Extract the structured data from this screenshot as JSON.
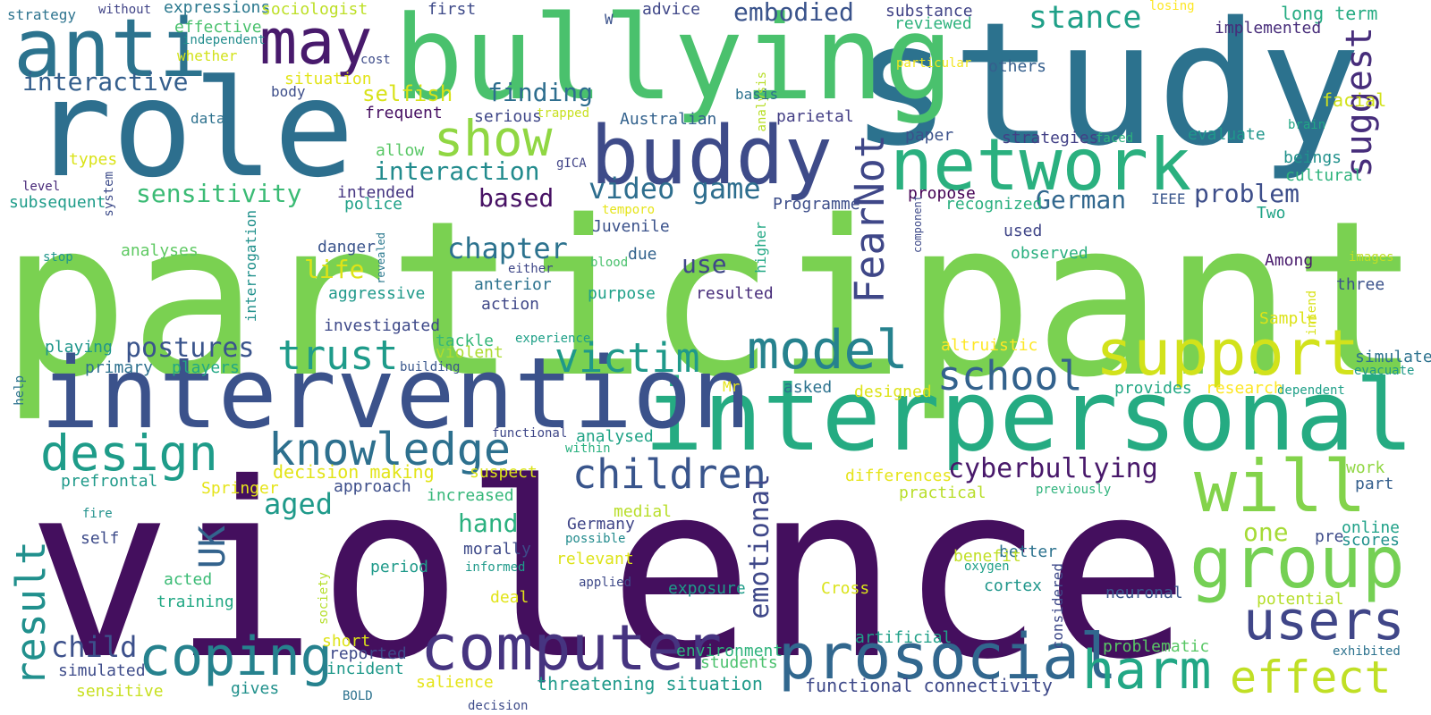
{
  "words": [
    {
      "text": "participant",
      "size": 240,
      "color": "#7ad151"
    },
    {
      "text": "violence",
      "size": 270,
      "color": "#440f5e"
    },
    {
      "text": "study",
      "size": 190,
      "color": "#2c728e"
    },
    {
      "text": "role",
      "size": 150,
      "color": "#2d6f8e"
    },
    {
      "text": "bullying",
      "size": 130,
      "color": "#4ac16d"
    },
    {
      "text": "interpersonal",
      "size": 110,
      "color": "#25ab82"
    },
    {
      "text": "intervention",
      "size": 110,
      "color": "#3b528b"
    },
    {
      "text": "buddy",
      "size": 90,
      "color": "#3e4b89"
    },
    {
      "text": "anti",
      "size": 90,
      "color": "#2c738e"
    },
    {
      "text": "network",
      "size": 80,
      "color": "#2ab07f"
    },
    {
      "text": "may",
      "size": 70,
      "color": "#481a6c"
    },
    {
      "text": "group",
      "size": 80,
      "color": "#75d054"
    },
    {
      "text": "will",
      "size": 80,
      "color": "#83d34b"
    },
    {
      "text": "computer",
      "size": 70,
      "color": "#463480"
    },
    {
      "text": "prosocial",
      "size": 70,
      "color": "#31678e"
    },
    {
      "text": "support",
      "size": 70,
      "color": "#d2e21b"
    },
    {
      "text": "model",
      "size": 60,
      "color": "#26828e"
    },
    {
      "text": "users",
      "size": 60,
      "color": "#404688"
    },
    {
      "text": "harm",
      "size": 60,
      "color": "#22a785"
    },
    {
      "text": "effect",
      "size": 50,
      "color": "#c0df25"
    },
    {
      "text": "coping",
      "size": 60,
      "color": "#26828e"
    },
    {
      "text": "design",
      "size": 55,
      "color": "#1e9c89"
    },
    {
      "text": "knowledge",
      "size": 50,
      "color": "#2d708e"
    },
    {
      "text": "show",
      "size": 55,
      "color": "#90d743"
    },
    {
      "text": "victim",
      "size": 45,
      "color": "#1f998a"
    },
    {
      "text": "children",
      "size": 45,
      "color": "#39558c"
    },
    {
      "text": "school",
      "size": 45,
      "color": "#33628d"
    },
    {
      "text": "trust",
      "size": 45,
      "color": "#1e9b8a"
    },
    {
      "text": "result",
      "size": 45,
      "color": "#21908d"
    },
    {
      "text": "FearNot",
      "size": 45,
      "color": "#3f4788"
    },
    {
      "text": "suggest",
      "size": 40,
      "color": "#472d7b"
    },
    {
      "text": "stance",
      "size": 35,
      "color": "#1fa088"
    },
    {
      "text": "emotional",
      "size": 30,
      "color": "#3f4889"
    },
    {
      "text": "UK",
      "size": 40,
      "color": "#33638d"
    },
    {
      "text": "video game",
      "size": 32,
      "color": "#2e6e8e"
    },
    {
      "text": "child",
      "size": 32,
      "color": "#3c508b"
    },
    {
      "text": "aged",
      "size": 32,
      "color": "#1f9a8a"
    },
    {
      "text": "chapter",
      "size": 32,
      "color": "#2c728e"
    },
    {
      "text": "cyberbullying",
      "size": 30,
      "color": "#48186a"
    },
    {
      "text": "postures",
      "size": 30,
      "color": "#3a548c"
    },
    {
      "text": "embodied",
      "size": 28,
      "color": "#3a538b"
    },
    {
      "text": "finding",
      "size": 28,
      "color": "#2e6e8e"
    },
    {
      "text": "interaction",
      "size": 28,
      "color": "#228b8d"
    },
    {
      "text": "sensitivity",
      "size": 28,
      "color": "#3bbb75"
    },
    {
      "text": "interactive",
      "size": 28,
      "color": "#355f8d"
    },
    {
      "text": "based",
      "size": 28,
      "color": "#471164"
    },
    {
      "text": "problem",
      "size": 28,
      "color": "#3d4e8a"
    },
    {
      "text": "German",
      "size": 28,
      "color": "#31678e"
    },
    {
      "text": "life",
      "size": 28,
      "color": "#dde318"
    },
    {
      "text": "hand",
      "size": 28,
      "color": "#2ab07f"
    },
    {
      "text": "use",
      "size": 28,
      "color": "#3f4788"
    },
    {
      "text": "one",
      "size": 28,
      "color": "#a5db36"
    },
    {
      "text": "selfish",
      "size": 24,
      "color": "#d8e219"
    },
    {
      "text": "expressions",
      "size": 18,
      "color": "#2a788e"
    },
    {
      "text": "sociologist",
      "size": 18,
      "color": "#bddf26"
    },
    {
      "text": "strategy",
      "size": 16,
      "color": "#2c738e"
    },
    {
      "text": "without",
      "size": 14,
      "color": "#414487"
    },
    {
      "text": "effective",
      "size": 18,
      "color": "#4ac16d"
    },
    {
      "text": "independent",
      "size": 14,
      "color": "#228d8d"
    },
    {
      "text": "whether",
      "size": 16,
      "color": "#d2e21b"
    },
    {
      "text": "first",
      "size": 18,
      "color": "#3e4a89"
    },
    {
      "text": "W",
      "size": 16,
      "color": "#3b528b"
    },
    {
      "text": "advice",
      "size": 18,
      "color": "#3f4788"
    },
    {
      "text": "substance",
      "size": 18,
      "color": "#414487"
    },
    {
      "text": "reviewed",
      "size": 18,
      "color": "#2db27d"
    },
    {
      "text": "losing",
      "size": 14,
      "color": "#fde725"
    },
    {
      "text": "long term",
      "size": 20,
      "color": "#25ab82"
    },
    {
      "text": "implemented",
      "size": 18,
      "color": "#472c7a"
    },
    {
      "text": "particular",
      "size": 14,
      "color": "#f1e51d"
    },
    {
      "text": "others",
      "size": 18,
      "color": "#355f8d"
    },
    {
      "text": "cost",
      "size": 14,
      "color": "#3e4c8a"
    },
    {
      "text": "situation",
      "size": 18,
      "color": "#e2e418"
    },
    {
      "text": "body",
      "size": 16,
      "color": "#3d4e8a"
    },
    {
      "text": "analysis",
      "size": 14,
      "color": "#b8de29"
    },
    {
      "text": "basis",
      "size": 16,
      "color": "#2c728e"
    },
    {
      "text": "parietal",
      "size": 18,
      "color": "#433e85"
    },
    {
      "text": "facial",
      "size": 20,
      "color": "#d2e21b"
    },
    {
      "text": "brain",
      "size": 14,
      "color": "#21a685"
    },
    {
      "text": "data",
      "size": 16,
      "color": "#2d718e"
    },
    {
      "text": "frequent",
      "size": 18,
      "color": "#471063"
    },
    {
      "text": "serious",
      "size": 18,
      "color": "#3f4788"
    },
    {
      "text": "trapped",
      "size": 14,
      "color": "#c8e020"
    },
    {
      "text": "Australian",
      "size": 18,
      "color": "#33628d"
    },
    {
      "text": "paper",
      "size": 18,
      "color": "#3b518b"
    },
    {
      "text": "strategies",
      "size": 18,
      "color": "#424086"
    },
    {
      "text": "faced",
      "size": 14,
      "color": "#2db27d"
    },
    {
      "text": "evaluate",
      "size": 18,
      "color": "#1f968b"
    },
    {
      "text": "beings",
      "size": 18,
      "color": "#21918c"
    },
    {
      "text": "cultural",
      "size": 18,
      "color": "#2eb37c"
    },
    {
      "text": "types",
      "size": 18,
      "color": "#dae319"
    },
    {
      "text": "allow",
      "size": 18,
      "color": "#58c765"
    },
    {
      "text": "gICA",
      "size": 14,
      "color": "#414487"
    },
    {
      "text": "system",
      "size": 14,
      "color": "#3e4c8a"
    },
    {
      "text": "level",
      "size": 14,
      "color": "#472878"
    },
    {
      "text": "intended",
      "size": 18,
      "color": "#453581"
    },
    {
      "text": "propose",
      "size": 18,
      "color": "#440154"
    },
    {
      "text": "recognized",
      "size": 18,
      "color": "#2ab07f"
    },
    {
      "text": "IEEE",
      "size": 16,
      "color": "#39568c"
    },
    {
      "text": "Two",
      "size": 18,
      "color": "#20a386"
    },
    {
      "text": "subsequent",
      "size": 18,
      "color": "#1e9c89"
    },
    {
      "text": "police",
      "size": 18,
      "color": "#1fa188"
    },
    {
      "text": "temporo",
      "size": 14,
      "color": "#e5e419"
    },
    {
      "text": "Programme",
      "size": 18,
      "color": "#3d4e8a"
    },
    {
      "text": "component",
      "size": 12,
      "color": "#3e4a89"
    },
    {
      "text": "used",
      "size": 18,
      "color": "#404688"
    },
    {
      "text": "interrogation",
      "size": 16,
      "color": "#21918c"
    },
    {
      "text": "danger",
      "size": 18,
      "color": "#3a548c"
    },
    {
      "text": "Juvenile",
      "size": 18,
      "color": "#3b528b"
    },
    {
      "text": "higher",
      "size": 16,
      "color": "#22a884"
    },
    {
      "text": "observed",
      "size": 18,
      "color": "#29af7f"
    },
    {
      "text": "stop",
      "size": 14,
      "color": "#1f968b"
    },
    {
      "text": "analyses",
      "size": 18,
      "color": "#5ec962"
    },
    {
      "text": "revealed",
      "size": 12,
      "color": "#2a788e"
    },
    {
      "text": "either",
      "size": 14,
      "color": "#3f4788"
    },
    {
      "text": "blood",
      "size": 14,
      "color": "#4ac16d"
    },
    {
      "text": "due",
      "size": 18,
      "color": "#33638d"
    },
    {
      "text": "Among",
      "size": 18,
      "color": "#481a6c"
    },
    {
      "text": "images",
      "size": 14,
      "color": "#c0df25"
    },
    {
      "text": "aggressive",
      "size": 18,
      "color": "#1f998a"
    },
    {
      "text": "anterior",
      "size": 18,
      "color": "#2c728e"
    },
    {
      "text": "purpose",
      "size": 18,
      "color": "#1fa088"
    },
    {
      "text": "resulted",
      "size": 18,
      "color": "#472c7a"
    },
    {
      "text": "three",
      "size": 18,
      "color": "#3b528b"
    },
    {
      "text": "action",
      "size": 18,
      "color": "#3f4788"
    },
    {
      "text": "intend",
      "size": 14,
      "color": "#d8e219"
    },
    {
      "text": "Sample",
      "size": 18,
      "color": "#dde318"
    },
    {
      "text": "investigated",
      "size": 18,
      "color": "#3e4989"
    },
    {
      "text": "playing",
      "size": 18,
      "color": "#1f968b"
    },
    {
      "text": "tackle",
      "size": 18,
      "color": "#35b779"
    },
    {
      "text": "experience",
      "size": 14,
      "color": "#1fa088"
    },
    {
      "text": "violent",
      "size": 18,
      "color": "#addc30"
    },
    {
      "text": "altruistic",
      "size": 18,
      "color": "#fde725"
    },
    {
      "text": "simulate",
      "size": 18,
      "color": "#2c728e"
    },
    {
      "text": "evacuate",
      "size": 14,
      "color": "#1f998a"
    },
    {
      "text": "primary",
      "size": 18,
      "color": "#2d708e"
    },
    {
      "text": "players",
      "size": 18,
      "color": "#22a884"
    },
    {
      "text": "building",
      "size": 14,
      "color": "#39568c"
    },
    {
      "text": "Mr",
      "size": 16,
      "color": "#e5e419"
    },
    {
      "text": "asked",
      "size": 18,
      "color": "#2c728e"
    },
    {
      "text": "designed",
      "size": 18,
      "color": "#dde318"
    },
    {
      "text": "provides",
      "size": 18,
      "color": "#22a884"
    },
    {
      "text": "research",
      "size": 18,
      "color": "#fde725"
    },
    {
      "text": "dependent",
      "size": 14,
      "color": "#1fa088"
    },
    {
      "text": "help",
      "size": 14,
      "color": "#2c728e"
    },
    {
      "text": "functional",
      "size": 14,
      "color": "#3f4788"
    },
    {
      "text": "within",
      "size": 14,
      "color": "#2ab07f"
    },
    {
      "text": "analysed",
      "size": 18,
      "color": "#20a386"
    },
    {
      "text": "decision making",
      "size": 20,
      "color": "#e2e418"
    },
    {
      "text": "suspect",
      "size": 18,
      "color": "#dae319"
    },
    {
      "text": "differences",
      "size": 18,
      "color": "#e5e419"
    },
    {
      "text": "work",
      "size": 18,
      "color": "#90d743"
    },
    {
      "text": "prefrontal",
      "size": 18,
      "color": "#1f9a8a"
    },
    {
      "text": "approach",
      "size": 18,
      "color": "#3d4e8a"
    },
    {
      "text": "practical",
      "size": 18,
      "color": "#b8de29"
    },
    {
      "text": "previously",
      "size": 14,
      "color": "#2eb37c"
    },
    {
      "text": "part",
      "size": 18,
      "color": "#355f8d"
    },
    {
      "text": "Springer",
      "size": 18,
      "color": "#e5e419"
    },
    {
      "text": "increased",
      "size": 18,
      "color": "#35b779"
    },
    {
      "text": "medial",
      "size": 18,
      "color": "#b8de29"
    },
    {
      "text": "fire",
      "size": 14,
      "color": "#21918c"
    },
    {
      "text": "Germany",
      "size": 18,
      "color": "#404688"
    },
    {
      "text": "online",
      "size": 18,
      "color": "#1fa188"
    },
    {
      "text": "self",
      "size": 18,
      "color": "#3e4c8a"
    },
    {
      "text": "possible",
      "size": 14,
      "color": "#228b8d"
    },
    {
      "text": "pre",
      "size": 18,
      "color": "#3e4c8a"
    },
    {
      "text": "scores",
      "size": 18,
      "color": "#21918c"
    },
    {
      "text": "morally",
      "size": 18,
      "color": "#3e4a89"
    },
    {
      "text": "better",
      "size": 18,
      "color": "#2c728e"
    },
    {
      "text": "benefit",
      "size": 18,
      "color": "#c0df25"
    },
    {
      "text": "oxygen",
      "size": 14,
      "color": "#1fa088"
    },
    {
      "text": "society",
      "size": 14,
      "color": "#b5de2b"
    },
    {
      "text": "acted",
      "size": 18,
      "color": "#3bbb75"
    },
    {
      "text": "period",
      "size": 18,
      "color": "#1f9a8a"
    },
    {
      "text": "informed",
      "size": 14,
      "color": "#1f9a8a"
    },
    {
      "text": "relevant",
      "size": 18,
      "color": "#dde318"
    },
    {
      "text": "considered",
      "size": 16,
      "color": "#3e4989"
    },
    {
      "text": "cortex",
      "size": 18,
      "color": "#1f968b"
    },
    {
      "text": "training",
      "size": 18,
      "color": "#22a884"
    },
    {
      "text": "applied",
      "size": 14,
      "color": "#3e4989"
    },
    {
      "text": "exposure",
      "size": 18,
      "color": "#1e9c89"
    },
    {
      "text": "Cross",
      "size": 18,
      "color": "#dae319"
    },
    {
      "text": "neuronal",
      "size": 18,
      "color": "#39568c"
    },
    {
      "text": "potential",
      "size": 18,
      "color": "#b5de2b"
    },
    {
      "text": "deal",
      "size": 18,
      "color": "#e2e418"
    },
    {
      "text": "artificial",
      "size": 18,
      "color": "#1fa088"
    },
    {
      "text": "short",
      "size": 18,
      "color": "#dde318"
    },
    {
      "text": "problematic",
      "size": 18,
      "color": "#58c765"
    },
    {
      "text": "reported",
      "size": 18,
      "color": "#3e4989"
    },
    {
      "text": "environment",
      "size": 18,
      "color": "#2eb37c"
    },
    {
      "text": "exhibited",
      "size": 14,
      "color": "#2c728e"
    },
    {
      "text": "simulated",
      "size": 18,
      "color": "#3e4c8a"
    },
    {
      "text": "incident",
      "size": 18,
      "color": "#1f998a"
    },
    {
      "text": "students",
      "size": 18,
      "color": "#4ac16d"
    },
    {
      "text": "gives",
      "size": 18,
      "color": "#21918c"
    },
    {
      "text": "BOLD",
      "size": 14,
      "color": "#2c728e"
    },
    {
      "text": "salience",
      "size": 18,
      "color": "#e5e419"
    },
    {
      "text": "threatening situation",
      "size": 20,
      "color": "#1f9a8a"
    },
    {
      "text": "functional connectivity",
      "size": 20,
      "color": "#3e4989"
    },
    {
      "text": "sensitive",
      "size": 18,
      "color": "#c8e020"
    },
    {
      "text": "decision",
      "size": 14,
      "color": "#3e4c8a"
    }
  ]
}
